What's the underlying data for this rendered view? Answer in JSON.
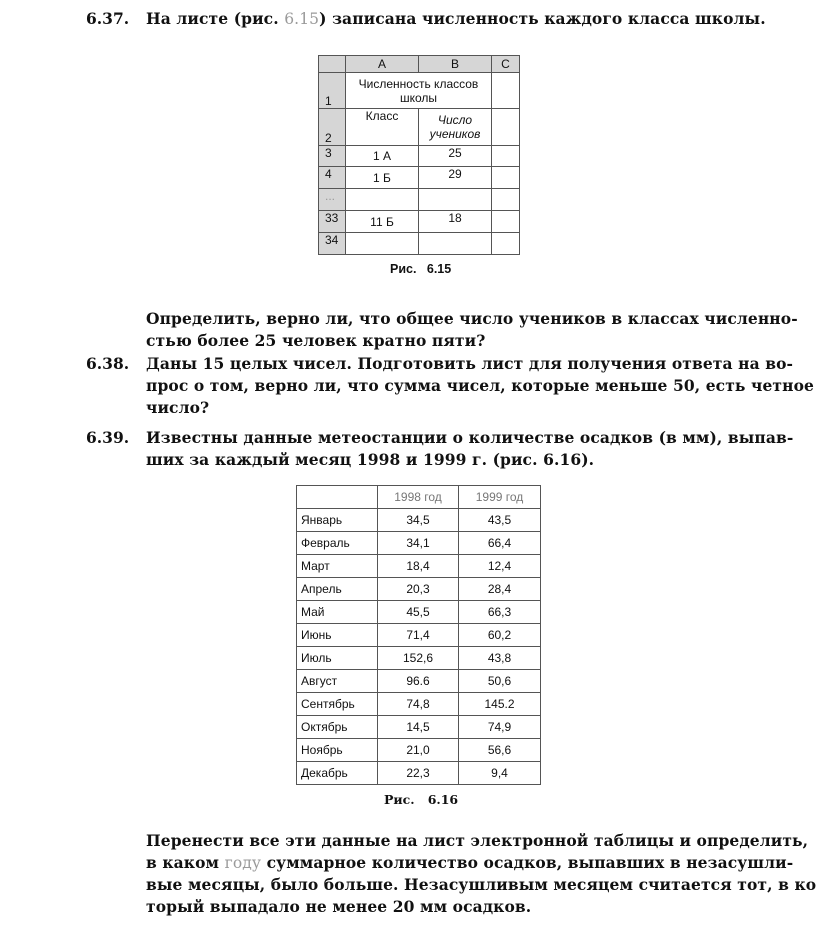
{
  "p637": {
    "num": "6.37.",
    "before": "На листе (рис. ",
    "ref": "6.15",
    "after": ") записана численность каждого класса школы."
  },
  "table1": {
    "cols": [
      "A",
      "B",
      "C"
    ],
    "rows": [
      "1",
      "2",
      "3",
      "4",
      "...",
      "33",
      "34"
    ],
    "title": "Численность классов школы",
    "h_class": "Класс",
    "h_count": "Число учеников",
    "data": [
      [
        "1 А",
        "25"
      ],
      [
        "1 Б",
        "29"
      ],
      [
        "",
        ""
      ],
      [
        "11 Б",
        "18"
      ],
      [
        "",
        ""
      ]
    ],
    "caption": "Рис.   6.15"
  },
  "p637b": [
    "Определить, верно ли, что общее число учеников в классах численно-",
    "стью более 25 человек кратно пяти?"
  ],
  "p638": {
    "num": "6.38.",
    "lines": [
      "Даны 15 целых чисел. Подготовить лист для получения ответа на во-",
      "прос о том, верно ли, что сумма чисел, которые меньше 50, есть четное",
      "число?"
    ]
  },
  "p639": {
    "num": "6.39.",
    "lines": [
      "Известны данные метеостанции о количестве осадков (в мм), выпав-",
      "ших за каждый месяц 1998 и 1999 г. (рис. 6.16)."
    ]
  },
  "table2": {
    "headers": [
      "",
      "1998 год",
      "1999 год"
    ],
    "rows": [
      [
        "Январь",
        "34,5",
        "43,5"
      ],
      [
        "Февраль",
        "34,1",
        "66,4"
      ],
      [
        "Март",
        "18,4",
        "12,4"
      ],
      [
        "Апрель",
        "20,3",
        "28,4"
      ],
      [
        "Май",
        "45,5",
        "66,3"
      ],
      [
        "Июнь",
        "71,4",
        "60,2"
      ],
      [
        "Июль",
        "152,6",
        "43,8"
      ],
      [
        "Август",
        "96.6",
        "50,6"
      ],
      [
        "Сентябрь",
        "74,8",
        "145.2"
      ],
      [
        "Октябрь",
        "14,5",
        "74,9"
      ],
      [
        "Ноябрь",
        "21,0",
        "56,6"
      ],
      [
        "Декабрь",
        "22,3",
        "9,4"
      ]
    ],
    "caption": "Рис.   6.16"
  },
  "final": {
    "l1": "Перенести все эти данные на лист электронной таблицы и определить,",
    "l2a": "в каком ",
    "l2g": "году",
    "l2b": " суммарное количество осадков, выпавших в незасушли-",
    "l3": "вые месяцы, было больше. Незасушливым месяцем считается тот, в ко-",
    "l4": "торый выпадало не менее 20 мм осадков."
  }
}
